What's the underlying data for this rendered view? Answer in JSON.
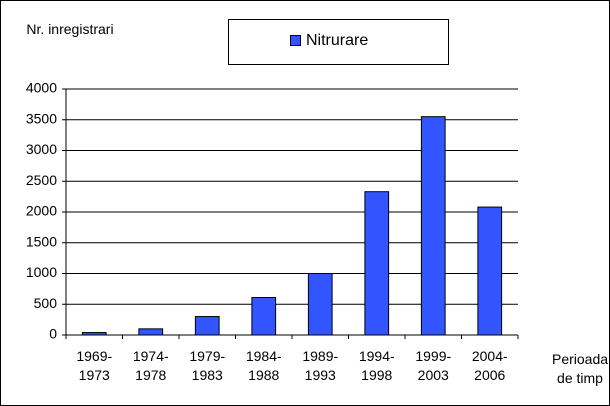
{
  "chart_data": {
    "type": "bar",
    "categories": [
      "1969-1973",
      "1974-1978",
      "1979-1983",
      "1984-1988",
      "1989-1993",
      "1994-1998",
      "1999-2003",
      "2004-2006"
    ],
    "series": [
      {
        "name": "Nitrurare",
        "color": "#3355ff",
        "values": [
          40,
          100,
          300,
          610,
          1000,
          2330,
          3550,
          2080
        ]
      }
    ],
    "ylabel": "Nr. inregistrari",
    "xlabel": "Perioada de timp",
    "ylim": [
      0,
      4000
    ],
    "yticks": [
      0,
      500,
      1000,
      1500,
      2000,
      2500,
      3000,
      3500,
      4000
    ],
    "grid": true,
    "legend": "top"
  }
}
